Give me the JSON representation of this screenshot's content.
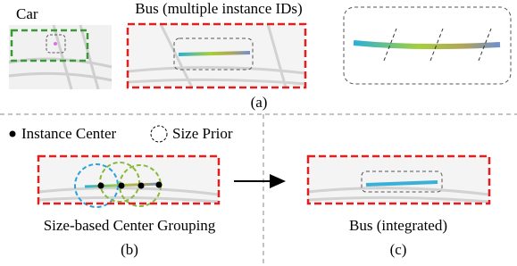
{
  "panel_a": {
    "car_label": "Car",
    "bus_label": "Bus (multiple instance IDs)",
    "caption": "(a)"
  },
  "legend": {
    "center": "Instance Center",
    "prior": "Size Prior"
  },
  "panel_b": {
    "label": "Size-based Center Grouping",
    "caption": "(b)"
  },
  "panel_c": {
    "label": "Bus (integrated)",
    "caption": "(c)"
  }
}
